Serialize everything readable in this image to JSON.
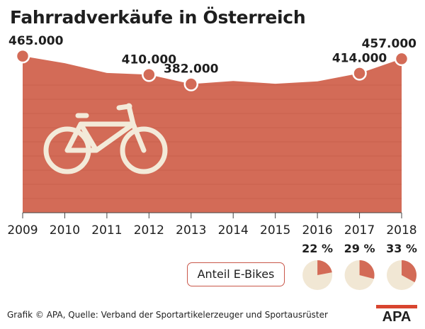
{
  "title": "Fahrradverkäufe in Österreich",
  "chart_data": {
    "type": "area",
    "title": "Fahrradverkäufe in Österreich",
    "x": [
      "2009",
      "2010",
      "2011",
      "2012",
      "2013",
      "2014",
      "2015",
      "2016",
      "2017",
      "2018"
    ],
    "values": [
      465000,
      444000,
      415000,
      410000,
      382000,
      391000,
      383000,
      390000,
      414000,
      457000
    ],
    "labels": [
      "465.000",
      "",
      "",
      "410.000",
      "382.000",
      "",
      "",
      "",
      "414.000",
      "457.000"
    ],
    "ylim": [
      0,
      480000
    ],
    "grid": true,
    "colors": {
      "area": "#d36b57",
      "grid": "#b8503f",
      "marker": "#d36b57",
      "bike": "#f3ead9"
    }
  },
  "ebikes": {
    "legend_label": "Anteil E-Bikes",
    "years": [
      "2016",
      "2017",
      "2018"
    ],
    "values": [
      22,
      29,
      33
    ],
    "labels": [
      "22 %",
      "29 %",
      "33 %"
    ],
    "colors": {
      "base": "#f1e7d4",
      "share": "#d36b57"
    }
  },
  "footer": "Grafik © APA, Quelle: Verband der Sportartikelerzeuger und Sportausrüster",
  "logo": "APA"
}
